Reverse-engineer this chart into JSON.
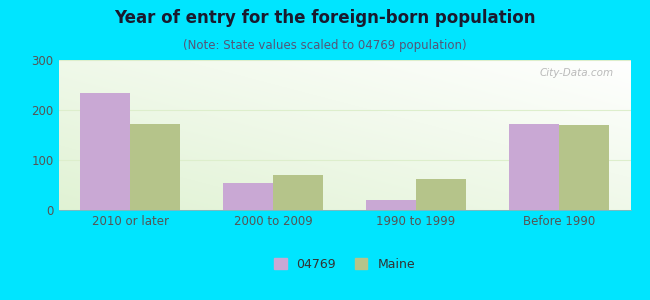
{
  "title": "Year of entry for the foreign-born population",
  "subtitle": "(Note: State values scaled to 04769 population)",
  "categories": [
    "2010 or later",
    "2000 to 2009",
    "1990 to 1999",
    "Before 1990"
  ],
  "series": {
    "04769": [
      235,
      55,
      20,
      172
    ],
    "Maine": [
      172,
      70,
      63,
      170
    ]
  },
  "bar_color_04769": "#c9a8d4",
  "bar_color_maine": "#b5c48a",
  "background_outer": "#00e5ff",
  "ylim": [
    0,
    300
  ],
  "yticks": [
    0,
    100,
    200,
    300
  ],
  "bar_width": 0.35,
  "legend_label_04769": "04769",
  "legend_label_maine": "Maine",
  "title_fontsize": 12,
  "subtitle_fontsize": 8.5,
  "tick_fontsize": 8.5,
  "legend_fontsize": 9,
  "grid_color": "#ddeecc",
  "watermark": "City-Data.com"
}
